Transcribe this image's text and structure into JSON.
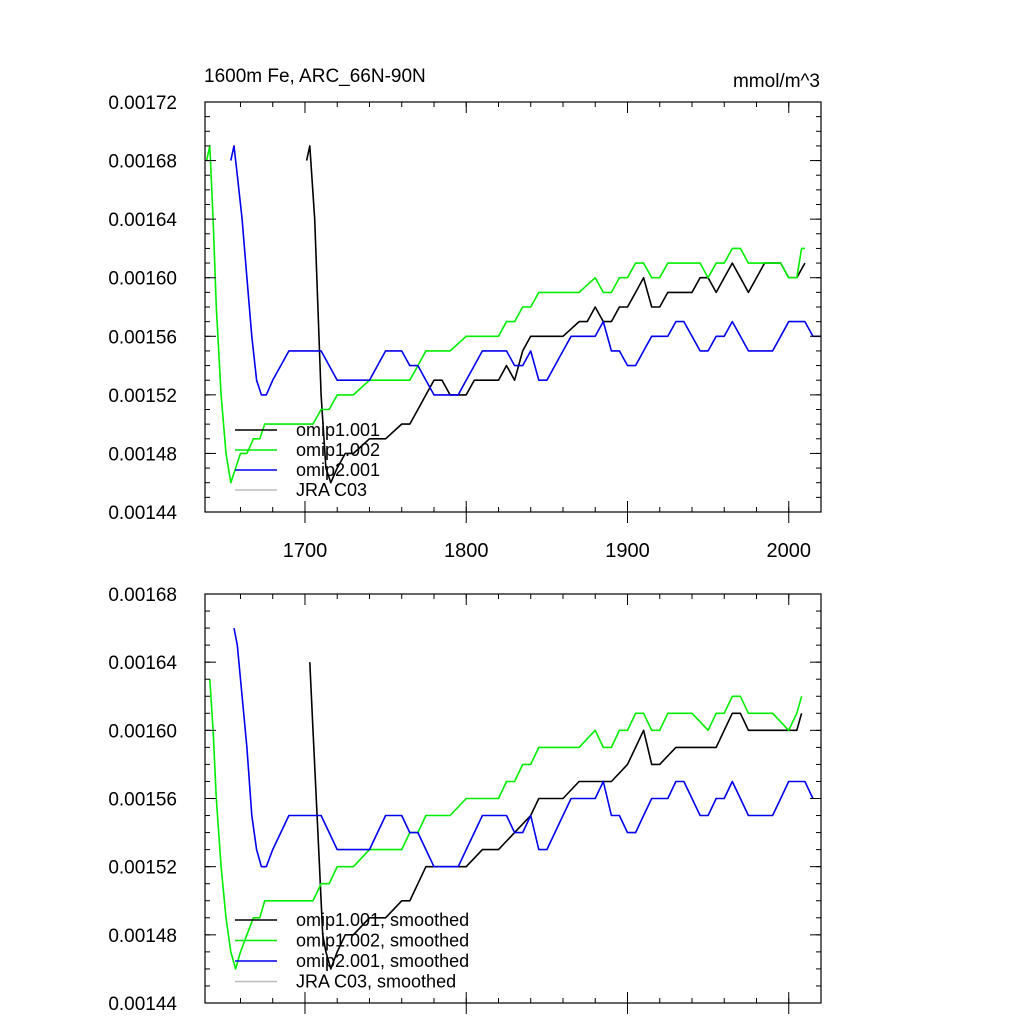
{
  "chart_data": [
    {
      "type": "line",
      "title": "1600m Fe, ARC_66N-90N",
      "units": "mmol/m^3",
      "xlim": [
        1638,
        2020
      ],
      "ylim": [
        0.00144,
        0.00172
      ],
      "xticks": [
        1700,
        1800,
        1900,
        2000
      ],
      "xtick_labels": [
        "1700",
        "1800",
        "1900",
        "2000"
      ],
      "yticks": [
        0.00144,
        0.00148,
        0.00152,
        0.00156,
        0.0016,
        0.00164,
        0.00168,
        0.00172
      ],
      "ytick_labels": [
        "0.00144",
        "0.00148",
        "0.00152",
        "0.00156",
        "0.00160",
        "0.00164",
        "0.00168",
        "0.00172"
      ],
      "legend_position": "bottom-left",
      "series": [
        {
          "name": "omip1.001",
          "color": "#000000",
          "x": [
            1701,
            1703,
            1706,
            1710,
            1713,
            1716,
            1720,
            1725,
            1730,
            1740,
            1750,
            1760,
            1765,
            1770,
            1775,
            1780,
            1785,
            1790,
            1795,
            1800,
            1805,
            1810,
            1820,
            1825,
            1830,
            1835,
            1840,
            1845,
            1850,
            1860,
            1870,
            1875,
            1880,
            1885,
            1890,
            1895,
            1900,
            1905,
            1910,
            1915,
            1920,
            1925,
            1930,
            1935,
            1940,
            1945,
            1950,
            1955,
            1960,
            1965,
            1970,
            1975,
            1980,
            1985,
            1990,
            1995,
            2000,
            2005,
            2010
          ],
          "y": [
            0.00168,
            0.00169,
            0.00164,
            0.00152,
            0.00147,
            0.00146,
            0.00147,
            0.00148,
            0.00148,
            0.00149,
            0.00149,
            0.0015,
            0.0015,
            0.00151,
            0.00152,
            0.00153,
            0.00153,
            0.00152,
            0.00152,
            0.00152,
            0.00153,
            0.00153,
            0.00153,
            0.00154,
            0.00153,
            0.00155,
            0.00156,
            0.00156,
            0.00156,
            0.00156,
            0.00157,
            0.00157,
            0.00158,
            0.00157,
            0.00157,
            0.00158,
            0.00158,
            0.00159,
            0.0016,
            0.00158,
            0.00158,
            0.00159,
            0.00159,
            0.00159,
            0.00159,
            0.0016,
            0.0016,
            0.00159,
            0.0016,
            0.00161,
            0.0016,
            0.00159,
            0.0016,
            0.00161,
            0.00161,
            0.00161,
            0.0016,
            0.0016,
            0.00161
          ]
        },
        {
          "name": "omip1.002",
          "color": "#00ee00",
          "x": [
            1639,
            1641,
            1643,
            1645,
            1648,
            1651,
            1654,
            1657,
            1660,
            1664,
            1668,
            1672,
            1675,
            1680,
            1685,
            1690,
            1695,
            1700,
            1705,
            1710,
            1715,
            1720,
            1725,
            1730,
            1740,
            1750,
            1760,
            1765,
            1770,
            1775,
            1780,
            1785,
            1790,
            1800,
            1810,
            1820,
            1825,
            1830,
            1835,
            1840,
            1845,
            1850,
            1855,
            1860,
            1870,
            1880,
            1885,
            1890,
            1895,
            1900,
            1905,
            1910,
            1915,
            1920,
            1925,
            1930,
            1935,
            1940,
            1945,
            1950,
            1955,
            1960,
            1965,
            1970,
            1975,
            1980,
            1985,
            1990,
            1995,
            2000,
            2005,
            2008,
            2010
          ],
          "y": [
            0.00168,
            0.00169,
            0.00164,
            0.00158,
            0.00152,
            0.00148,
            0.00146,
            0.00147,
            0.00148,
            0.00148,
            0.00149,
            0.00149,
            0.0015,
            0.0015,
            0.0015,
            0.0015,
            0.0015,
            0.0015,
            0.0015,
            0.00151,
            0.00151,
            0.00152,
            0.00152,
            0.00152,
            0.00153,
            0.00153,
            0.00153,
            0.00153,
            0.00154,
            0.00155,
            0.00155,
            0.00155,
            0.00155,
            0.00156,
            0.00156,
            0.00156,
            0.00157,
            0.00157,
            0.00158,
            0.00158,
            0.00159,
            0.00159,
            0.00159,
            0.00159,
            0.00159,
            0.0016,
            0.00159,
            0.00159,
            0.0016,
            0.0016,
            0.00161,
            0.00161,
            0.0016,
            0.0016,
            0.00161,
            0.00161,
            0.00161,
            0.00161,
            0.00161,
            0.0016,
            0.00161,
            0.00161,
            0.00162,
            0.00162,
            0.00161,
            0.00161,
            0.00161,
            0.00161,
            0.00161,
            0.0016,
            0.0016,
            0.00162,
            0.00162
          ]
        },
        {
          "name": "omip2.001",
          "color": "#0000ee",
          "x": [
            1654,
            1656,
            1658,
            1661,
            1664,
            1667,
            1670,
            1673,
            1676,
            1680,
            1685,
            1690,
            1695,
            1700,
            1705,
            1710,
            1715,
            1720,
            1725,
            1730,
            1735,
            1740,
            1745,
            1750,
            1755,
            1760,
            1765,
            1770,
            1775,
            1780,
            1785,
            1790,
            1795,
            1800,
            1805,
            1810,
            1815,
            1820,
            1825,
            1830,
            1835,
            1840,
            1845,
            1850,
            1855,
            1860,
            1865,
            1870,
            1875,
            1880,
            1885,
            1890,
            1895,
            1900,
            1905,
            1910,
            1915,
            1920,
            1925,
            1930,
            1935,
            1940,
            1945,
            1950,
            1955,
            1960,
            1965,
            1970,
            1975,
            1980,
            1985,
            1990,
            1995,
            2000,
            2005,
            2010,
            2015,
            2020
          ],
          "y": [
            0.00168,
            0.00169,
            0.00167,
            0.00164,
            0.0016,
            0.00156,
            0.00153,
            0.00152,
            0.00152,
            0.00153,
            0.00154,
            0.00155,
            0.00155,
            0.00155,
            0.00155,
            0.00155,
            0.00154,
            0.00153,
            0.00153,
            0.00153,
            0.00153,
            0.00153,
            0.00154,
            0.00155,
            0.00155,
            0.00155,
            0.00154,
            0.00154,
            0.00153,
            0.00152,
            0.00152,
            0.00152,
            0.00152,
            0.00153,
            0.00154,
            0.00155,
            0.00155,
            0.00155,
            0.00155,
            0.00154,
            0.00154,
            0.00155,
            0.00153,
            0.00153,
            0.00154,
            0.00155,
            0.00156,
            0.00156,
            0.00156,
            0.00156,
            0.00157,
            0.00155,
            0.00155,
            0.00154,
            0.00154,
            0.00155,
            0.00156,
            0.00156,
            0.00156,
            0.00157,
            0.00157,
            0.00156,
            0.00155,
            0.00155,
            0.00156,
            0.00156,
            0.00157,
            0.00156,
            0.00155,
            0.00155,
            0.00155,
            0.00155,
            0.00156,
            0.00157,
            0.00157,
            0.00157,
            0.00156,
            0.00156
          ]
        },
        {
          "name": "JRA C03",
          "color": "#bbbbbb",
          "x": [],
          "y": []
        }
      ]
    },
    {
      "type": "line",
      "title": "",
      "units": "",
      "xlim": [
        1638,
        2020
      ],
      "ylim": [
        0.00144,
        0.00168
      ],
      "xticks": [
        1700,
        1800,
        1900,
        2000
      ],
      "xtick_labels": [
        "",
        "",
        "",
        ""
      ],
      "yticks": [
        0.00144,
        0.00148,
        0.00152,
        0.00156,
        0.0016,
        0.00164,
        0.00168
      ],
      "ytick_labels": [
        "0.00144",
        "0.00148",
        "0.00152",
        "0.00156",
        "0.00160",
        "0.00164",
        "0.00168"
      ],
      "legend_position": "bottom-left",
      "series": [
        {
          "name": "omip1.001, smoothed",
          "color": "#000000",
          "x": [
            1703,
            1705,
            1708,
            1711,
            1713,
            1716,
            1720,
            1725,
            1730,
            1740,
            1750,
            1760,
            1765,
            1770,
            1775,
            1780,
            1785,
            1790,
            1800,
            1810,
            1820,
            1830,
            1840,
            1845,
            1850,
            1860,
            1870,
            1875,
            1880,
            1885,
            1890,
            1900,
            1905,
            1910,
            1915,
            1920,
            1930,
            1940,
            1945,
            1950,
            1955,
            1960,
            1965,
            1970,
            1975,
            1980,
            1990,
            2000,
            2005,
            2008
          ],
          "y": [
            0.00164,
            0.0016,
            0.00154,
            0.00148,
            0.00147,
            0.00146,
            0.00147,
            0.00148,
            0.00148,
            0.00149,
            0.00149,
            0.0015,
            0.0015,
            0.00151,
            0.00152,
            0.00152,
            0.00152,
            0.00152,
            0.00152,
            0.00153,
            0.00153,
            0.00154,
            0.00155,
            0.00156,
            0.00156,
            0.00156,
            0.00157,
            0.00157,
            0.00157,
            0.00157,
            0.00157,
            0.00158,
            0.00159,
            0.0016,
            0.00158,
            0.00158,
            0.00159,
            0.00159,
            0.00159,
            0.00159,
            0.00159,
            0.0016,
            0.00161,
            0.00161,
            0.0016,
            0.0016,
            0.0016,
            0.0016,
            0.0016,
            0.00161
          ]
        },
        {
          "name": "omip1.002, smoothed",
          "color": "#00ee00",
          "x": [
            1641,
            1643,
            1645,
            1648,
            1651,
            1654,
            1657,
            1660,
            1664,
            1668,
            1672,
            1675,
            1680,
            1685,
            1690,
            1695,
            1700,
            1705,
            1710,
            1715,
            1720,
            1725,
            1730,
            1740,
            1750,
            1760,
            1765,
            1770,
            1775,
            1780,
            1785,
            1790,
            1800,
            1810,
            1820,
            1825,
            1830,
            1835,
            1840,
            1845,
            1850,
            1855,
            1860,
            1870,
            1880,
            1885,
            1890,
            1895,
            1900,
            1905,
            1910,
            1915,
            1920,
            1925,
            1930,
            1940,
            1950,
            1955,
            1960,
            1965,
            1970,
            1975,
            1980,
            1990,
            2000,
            2005,
            2008
          ],
          "y": [
            0.00163,
            0.0016,
            0.00156,
            0.00152,
            0.00149,
            0.00147,
            0.00146,
            0.00147,
            0.00148,
            0.00149,
            0.00149,
            0.0015,
            0.0015,
            0.0015,
            0.0015,
            0.0015,
            0.0015,
            0.0015,
            0.00151,
            0.00151,
            0.00152,
            0.00152,
            0.00152,
            0.00153,
            0.00153,
            0.00153,
            0.00154,
            0.00154,
            0.00155,
            0.00155,
            0.00155,
            0.00155,
            0.00156,
            0.00156,
            0.00156,
            0.00157,
            0.00157,
            0.00158,
            0.00158,
            0.00159,
            0.00159,
            0.00159,
            0.00159,
            0.00159,
            0.0016,
            0.00159,
            0.00159,
            0.0016,
            0.0016,
            0.00161,
            0.00161,
            0.0016,
            0.0016,
            0.00161,
            0.00161,
            0.00161,
            0.0016,
            0.00161,
            0.00161,
            0.00162,
            0.00162,
            0.00161,
            0.00161,
            0.00161,
            0.0016,
            0.00161,
            0.00162
          ]
        },
        {
          "name": "omip2.001, smoothed",
          "color": "#0000ee",
          "x": [
            1656,
            1658,
            1661,
            1664,
            1667,
            1670,
            1673,
            1676,
            1680,
            1685,
            1690,
            1695,
            1700,
            1705,
            1710,
            1715,
            1720,
            1725,
            1730,
            1735,
            1740,
            1745,
            1750,
            1755,
            1760,
            1765,
            1770,
            1775,
            1780,
            1785,
            1790,
            1795,
            1800,
            1805,
            1810,
            1815,
            1820,
            1825,
            1830,
            1835,
            1840,
            1845,
            1850,
            1855,
            1860,
            1865,
            1870,
            1875,
            1880,
            1885,
            1890,
            1895,
            1900,
            1905,
            1910,
            1915,
            1920,
            1925,
            1930,
            1935,
            1940,
            1945,
            1950,
            1955,
            1960,
            1965,
            1970,
            1975,
            1980,
            1985,
            1990,
            1995,
            2000,
            2005,
            2010,
            2015
          ],
          "y": [
            0.00166,
            0.00165,
            0.00162,
            0.00159,
            0.00155,
            0.00153,
            0.00152,
            0.00152,
            0.00153,
            0.00154,
            0.00155,
            0.00155,
            0.00155,
            0.00155,
            0.00155,
            0.00154,
            0.00153,
            0.00153,
            0.00153,
            0.00153,
            0.00153,
            0.00154,
            0.00155,
            0.00155,
            0.00155,
            0.00154,
            0.00154,
            0.00153,
            0.00152,
            0.00152,
            0.00152,
            0.00152,
            0.00153,
            0.00154,
            0.00155,
            0.00155,
            0.00155,
            0.00155,
            0.00154,
            0.00154,
            0.00155,
            0.00153,
            0.00153,
            0.00154,
            0.00155,
            0.00156,
            0.00156,
            0.00156,
            0.00156,
            0.00157,
            0.00155,
            0.00155,
            0.00154,
            0.00154,
            0.00155,
            0.00156,
            0.00156,
            0.00156,
            0.00157,
            0.00157,
            0.00156,
            0.00155,
            0.00155,
            0.00156,
            0.00156,
            0.00157,
            0.00156,
            0.00155,
            0.00155,
            0.00155,
            0.00155,
            0.00156,
            0.00157,
            0.00157,
            0.00157,
            0.00156
          ]
        },
        {
          "name": "JRA C03, smoothed",
          "color": "#bbbbbb",
          "x": [],
          "y": []
        }
      ]
    }
  ]
}
